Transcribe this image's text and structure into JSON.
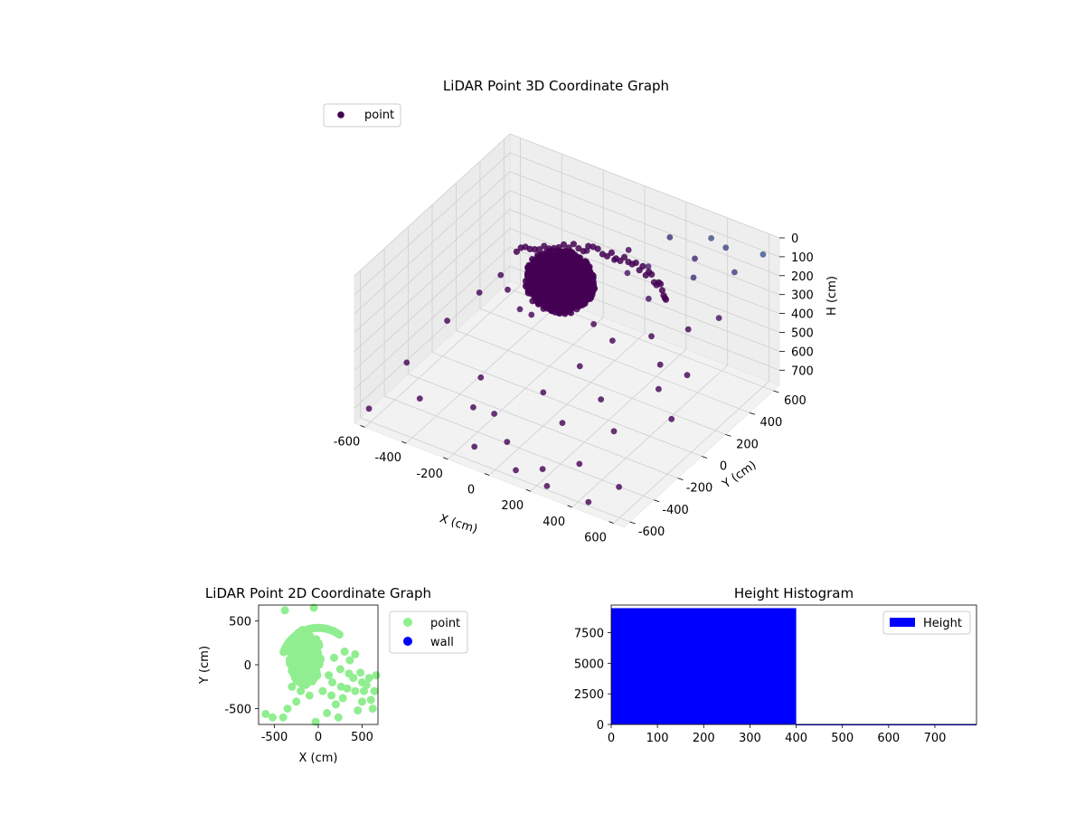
{
  "chart_data": [
    {
      "type": "scatter",
      "projection": "3d",
      "title": "LiDAR Point 3D Coordinate Graph",
      "xlabel": "X (cm)",
      "ylabel": "Y (cm)",
      "zlabel": "H (cm)",
      "xlim": [
        -650,
        650
      ],
      "ylim": [
        -650,
        650
      ],
      "zlim": [
        780,
        0
      ],
      "xticks": [
        "-600",
        "-400",
        "-200",
        "0",
        "200",
        "400",
        "600"
      ],
      "yticks": [
        "-600",
        "-400",
        "-200",
        "0",
        "200",
        "400",
        "600"
      ],
      "zticks": [
        "0",
        "100",
        "200",
        "300",
        "400",
        "500",
        "600",
        "700"
      ],
      "grid": true,
      "legend": {
        "location": "top-left",
        "entries": [
          {
            "label": "point",
            "color": "#440154"
          }
        ]
      },
      "colormap": "viridis",
      "cluster": {
        "center": [
          -150,
          200,
          310
        ],
        "radius": 150,
        "count": 9000
      },
      "arc": {
        "center": [
          0,
          0,
          240
        ],
        "radius": 420,
        "angle_from": 40,
        "angle_to": 150,
        "count": 40
      },
      "series": [
        {
          "name": "point",
          "points": [
            [
              -620,
              -580,
              730
            ],
            [
              -600,
              -300,
              640
            ],
            [
              -520,
              -100,
              500
            ],
            [
              -480,
              100,
              450
            ],
            [
              -430,
              250,
              500
            ],
            [
              -400,
              300,
              620
            ],
            [
              -300,
              -200,
              650
            ],
            [
              -250,
              -350,
              700
            ],
            [
              -200,
              50,
              420
            ],
            [
              -150,
              150,
              380
            ],
            [
              -120,
              -400,
              650
            ],
            [
              -80,
              300,
              360
            ],
            [
              -60,
              500,
              330
            ],
            [
              -20,
              550,
              290
            ],
            [
              0,
              -500,
              690
            ],
            [
              30,
              -250,
              560
            ],
            [
              60,
              120,
              400
            ],
            [
              90,
              350,
              250
            ],
            [
              120,
              -100,
              470
            ],
            [
              150,
              420,
              230
            ],
            [
              180,
              -350,
              600
            ],
            [
              200,
              -550,
              720
            ],
            [
              220,
              0,
              350
            ],
            [
              250,
              250,
              260
            ],
            [
              280,
              -200,
              520
            ],
            [
              300,
              550,
              200
            ],
            [
              320,
              -450,
              700
            ],
            [
              350,
              100,
              330
            ],
            [
              380,
              400,
              180
            ],
            [
              400,
              -300,
              580
            ],
            [
              420,
              600,
              120
            ],
            [
              450,
              -600,
              760
            ],
            [
              470,
              200,
              300
            ],
            [
              500,
              -100,
              430
            ],
            [
              520,
              500,
              150
            ],
            [
              540,
              -500,
              700
            ],
            [
              560,
              300,
              260
            ],
            [
              580,
              0,
              380
            ],
            [
              600,
              600,
              80
            ],
            [
              620,
              -200,
              480
            ],
            [
              -550,
              400,
              560
            ],
            [
              -350,
              500,
              480
            ],
            [
              -250,
              600,
              420
            ],
            [
              -100,
              -600,
              700
            ],
            [
              100,
              -600,
              740
            ],
            [
              150,
              600,
              180
            ],
            [
              250,
              -600,
              760
            ],
            [
              350,
              600,
              100
            ],
            [
              450,
              0,
              380
            ],
            [
              -450,
              -450,
              680
            ]
          ]
        }
      ]
    },
    {
      "type": "scatter",
      "title": "LiDAR Point 2D Coordinate Graph",
      "xlabel": "X (cm)",
      "ylabel": "Y (cm)",
      "xlim": [
        -680,
        680
      ],
      "ylim": [
        -680,
        680
      ],
      "xticks": [
        -500,
        0,
        500
      ],
      "yticks": [
        -500,
        0,
        500
      ],
      "legend": {
        "location": "outside-right",
        "entries": [
          {
            "label": "point",
            "color": "#90ee90"
          },
          {
            "label": "wall",
            "color": "#0000ff"
          }
        ]
      },
      "series": [
        {
          "name": "point",
          "color": "#90ee90",
          "cluster": {
            "center": [
              -150,
              80
            ],
            "rx": 180,
            "ry": 320,
            "count": 400
          },
          "arc": {
            "center": [
              0,
              0
            ],
            "radius": 420,
            "angle_from": 55,
            "angle_to": 160,
            "count": 50
          },
          "points": [
            [
              -600,
              -560
            ],
            [
              -520,
              -600
            ],
            [
              -400,
              -600
            ],
            [
              -350,
              -500
            ],
            [
              -250,
              -420
            ],
            [
              -100,
              -350
            ],
            [
              -30,
              -650
            ],
            [
              50,
              -300
            ],
            [
              100,
              -550
            ],
            [
              120,
              -120
            ],
            [
              160,
              -200
            ],
            [
              200,
              -450
            ],
            [
              230,
              -600
            ],
            [
              280,
              -380
            ],
            [
              330,
              -270
            ],
            [
              360,
              50
            ],
            [
              400,
              -150
            ],
            [
              420,
              -300
            ],
            [
              450,
              -520
            ],
            [
              480,
              -90
            ],
            [
              500,
              -420
            ],
            [
              520,
              -300
            ],
            [
              580,
              -150
            ],
            [
              600,
              -400
            ],
            [
              620,
              -500
            ],
            [
              660,
              -120
            ],
            [
              640,
              -300
            ],
            [
              -380,
              620
            ],
            [
              -50,
              650
            ],
            [
              300,
              150
            ],
            [
              250,
              -50
            ],
            [
              180,
              80
            ],
            [
              350,
              -100
            ],
            [
              420,
              120
            ],
            [
              550,
              -230
            ],
            [
              500,
              -200
            ],
            [
              150,
              -350
            ],
            [
              -200,
              -300
            ],
            [
              -300,
              -250
            ],
            [
              260,
              -250
            ]
          ]
        },
        {
          "name": "wall",
          "color": "#0000ff",
          "points": []
        }
      ]
    },
    {
      "type": "bar",
      "title": "Height Histogram",
      "xlim": [
        0,
        790
      ],
      "ylim": [
        0,
        9750
      ],
      "xticks": [
        0,
        100,
        200,
        300,
        400,
        500,
        600,
        700
      ],
      "yticks": [
        0,
        2500,
        5000,
        7500
      ],
      "legend": {
        "location": "top-right",
        "entries": [
          {
            "label": "Height",
            "color": "#0000ff"
          }
        ]
      },
      "bins": [
        {
          "from": 0,
          "to": 400,
          "value": 9500
        },
        {
          "from": 400,
          "to": 790,
          "value": 40
        }
      ]
    }
  ]
}
